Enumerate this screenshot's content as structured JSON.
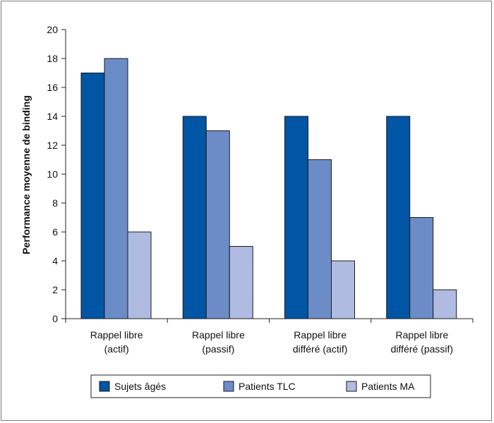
{
  "chart_data": {
    "type": "bar",
    "ylabel": "Performance moyenne de binding",
    "ylim": [
      0,
      20
    ],
    "yticks": [
      0,
      2,
      4,
      6,
      8,
      10,
      12,
      14,
      16,
      18,
      20
    ],
    "grid": false,
    "legend_position": "bottom",
    "categories": [
      [
        "Rappel libre",
        "(actif)"
      ],
      [
        "Rappel libre",
        "(passif)"
      ],
      [
        "Rappel libre",
        "différé (actif)"
      ],
      [
        "Rappel libre",
        "différé (passif)"
      ]
    ],
    "series": [
      {
        "name": "Sujets âgés",
        "color": "#0055a4",
        "values": [
          17,
          14,
          14,
          14
        ]
      },
      {
        "name": "Patients TLC",
        "color": "#6c8cc8",
        "values": [
          18,
          13,
          11,
          7
        ]
      },
      {
        "name": "Patients MA",
        "color": "#b0bbe2",
        "values": [
          6,
          5,
          4,
          2
        ]
      }
    ]
  }
}
